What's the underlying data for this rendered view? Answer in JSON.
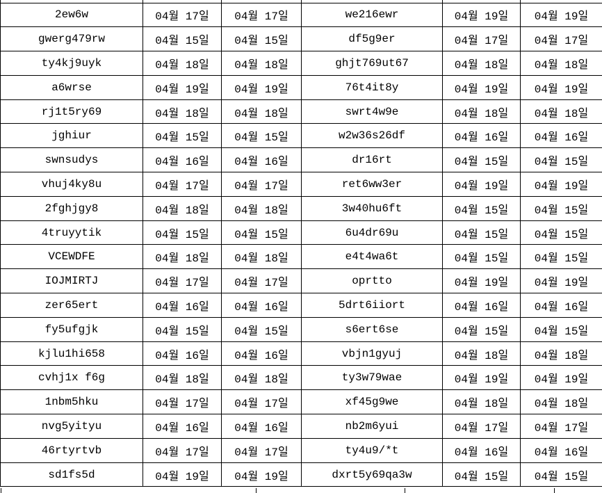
{
  "colors": {
    "background": "#ffffff",
    "grid_border": "#000000",
    "text": "#000000"
  },
  "table": {
    "description": "spreadsheet-like grid, no headers visible, 6 columns: id, date, date, id, date, date",
    "rows": [
      {
        "cells": [
          "2ew6w",
          "04월 17일",
          "04월 17일",
          "we216ewr",
          "04월 19일",
          "04월 19일"
        ]
      },
      {
        "cells": [
          "gwerg479rw",
          "04월 15일",
          "04월 15일",
          "df5g9er",
          "04월 17일",
          "04월 17일"
        ]
      },
      {
        "cells": [
          "ty4kj9uyk",
          "04월 18일",
          "04월 18일",
          "ghjt769ut67",
          "04월 18일",
          "04월 18일"
        ]
      },
      {
        "cells": [
          "a6wrse",
          "04월 19일",
          "04월 19일",
          "76t4it8y",
          "04월 19일",
          "04월 19일"
        ]
      },
      {
        "cells": [
          "rj1t5ry69",
          "04월 18일",
          "04월 18일",
          "swrt4w9e",
          "04월 18일",
          "04월 18일"
        ]
      },
      {
        "cells": [
          "jghiur",
          "04월 15일",
          "04월 15일",
          "w2w36s26df",
          "04월 16일",
          "04월 16일"
        ]
      },
      {
        "cells": [
          "swnsudys",
          "04월 16일",
          "04월 16일",
          "dr16rt",
          "04월 15일",
          "04월 15일"
        ]
      },
      {
        "cells": [
          "vhuj4ky8u",
          "04월 17일",
          "04월 17일",
          "ret6ww3er",
          "04월 19일",
          "04월 19일"
        ]
      },
      {
        "cells": [
          "2fghjgy8",
          "04월 18일",
          "04월 18일",
          "3w40hu6ft",
          "04월 15일",
          "04월 15일"
        ]
      },
      {
        "cells": [
          "4truyytik",
          "04월 15일",
          "04월 15일",
          "6u4dr69u",
          "04월 15일",
          "04월 15일"
        ]
      },
      {
        "cells": [
          "VCEWDFE",
          "04월 18일",
          "04월 18일",
          "e4t4wa6t",
          "04월 15일",
          "04월 15일"
        ]
      },
      {
        "cells": [
          "IOJMIRTJ",
          "04월 17일",
          "04월 17일",
          "oprtto",
          "04월 19일",
          "04월 19일"
        ]
      },
      {
        "cells": [
          "zer65ert",
          "04월 16일",
          "04월 16일",
          "5drt6iiort",
          "04월 16일",
          "04월 16일"
        ]
      },
      {
        "cells": [
          "fy5ufgjk",
          "04월 15일",
          "04월 15일",
          "s6ert6se",
          "04월 15일",
          "04월 15일"
        ]
      },
      {
        "cells": [
          "kjlu1hi658",
          "04월 16일",
          "04월 16일",
          "vbjn1gyuj",
          "04월 18일",
          "04월 18일"
        ]
      },
      {
        "cells": [
          "cvhj1x f6g",
          "04월 18일",
          "04월 18일",
          "ty3w79wae",
          "04월 19일",
          "04월 19일"
        ]
      },
      {
        "cells": [
          "1nbm5hku",
          "04월 17일",
          "04월 17일",
          "xf45g9we",
          "04월 18일",
          "04월 18일"
        ]
      },
      {
        "cells": [
          "nvg5yityu",
          "04월 16일",
          "04월 16일",
          "nb2m6yui",
          "04월 17일",
          "04월 17일"
        ]
      },
      {
        "cells": [
          "46rtyrtvb",
          "04월 17일",
          "04월 17일",
          "ty4u9/*t",
          "04월 16일",
          "04월 16일"
        ]
      },
      {
        "cells": [
          "sd1fs5d",
          "04월 19일",
          "04월 19일",
          "dxrt5y69qa3w",
          "04월 15일",
          "04월 15일"
        ]
      }
    ]
  }
}
